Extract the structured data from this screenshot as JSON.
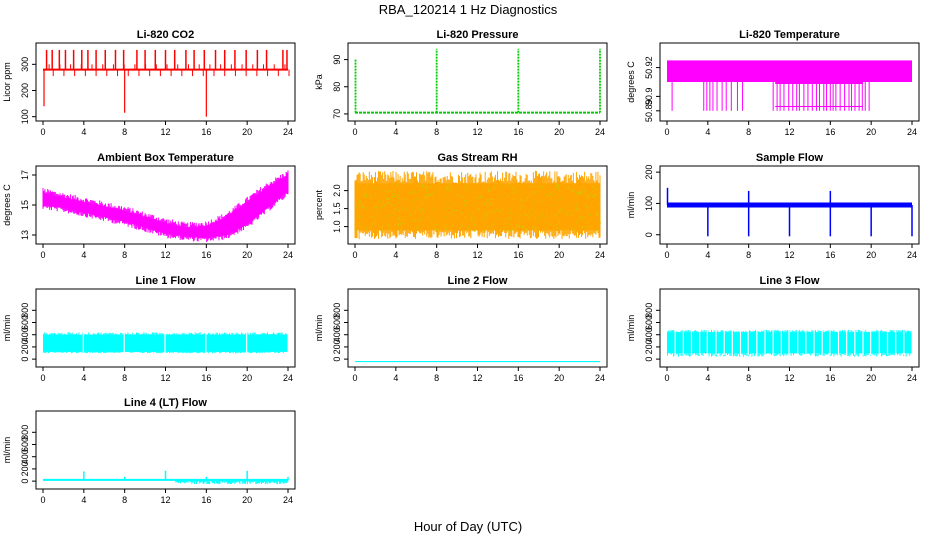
{
  "title": "RBA_120214  1 Hz Diagnostics",
  "xlabel": "Hour of Day (UTC)",
  "colors": {
    "co2": "#ff0000",
    "pressure": "#00cc00",
    "licor_temp": "#ff00ff",
    "box_temp": "#ff00ff",
    "rh_fill": "#ffa500",
    "rh_dots": "#cccc00",
    "sample_flow": "#0000ff",
    "line1": "#00ffff",
    "line2": "#00ffff",
    "line3": "#00ffff",
    "line4": "#00ffff"
  },
  "chart_data": [
    {
      "id": "co2",
      "type": "line",
      "title": "Li-820 CO2",
      "ylabel": "Licor ppm",
      "xlim": [
        0,
        24
      ],
      "ylim": [
        95,
        370
      ],
      "xticks": [
        0,
        4,
        8,
        12,
        16,
        20,
        24
      ],
      "yticks": [
        100,
        200,
        300
      ],
      "baseline": 280,
      "spikes_up": [
        0.35,
        0.9,
        1.6,
        2.2,
        3.0,
        3.8,
        4.4,
        5.2,
        6.1,
        7.1,
        7.9,
        9.2,
        10.0,
        11.0,
        12.0,
        12.9,
        14.0,
        14.8,
        15.8,
        16.9,
        17.8,
        18.8,
        19.9,
        21.0,
        21.9,
        23.5,
        23.9
      ],
      "spikes_down": [
        {
          "x": 0.1,
          "y": 140
        },
        {
          "x": 8.0,
          "y": 115
        },
        {
          "x": 16.0,
          "y": 100
        }
      ]
    },
    {
      "id": "pressure",
      "type": "line",
      "title": "Li-820 Pressure",
      "ylabel": "kPa",
      "xlim": [
        0,
        24
      ],
      "ylim": [
        68.5,
        95
      ],
      "xticks": [
        0,
        4,
        8,
        12,
        16,
        20,
        24
      ],
      "yticks": [
        70,
        80,
        90
      ],
      "baseline": 70.5,
      "spikes": [
        {
          "x": 0.05,
          "y": 90
        },
        {
          "x": 8.0,
          "y": 94
        },
        {
          "x": 16.0,
          "y": 94
        },
        {
          "x": 24.0,
          "y": 94
        }
      ]
    },
    {
      "id": "licor_temp",
      "type": "line",
      "title": "Li-820 Temperature",
      "ylabel": "degrees C",
      "xlim": [
        0,
        24
      ],
      "ylim": [
        50.885,
        50.935
      ],
      "xticks": [
        0,
        4,
        8,
        12,
        16,
        20,
        24
      ],
      "yticks": [
        50.89,
        50.9,
        50.92
      ],
      "ytick_labels": [
        "50.89",
        "50.9",
        "50.92"
      ],
      "levels": [
        50.925,
        50.91,
        50.89
      ]
    },
    {
      "id": "box_temp",
      "type": "area",
      "title": "Ambient Box Temperature",
      "ylabel": "degrees C",
      "xlim": [
        0,
        24
      ],
      "ylim": [
        12.6,
        17.4
      ],
      "xticks": [
        0,
        4,
        8,
        12,
        16,
        20,
        24
      ],
      "yticks": [
        13,
        15,
        17
      ],
      "x": [
        0,
        2,
        4,
        6,
        8,
        10,
        12,
        14,
        16,
        18,
        20,
        22,
        24
      ],
      "y_low": [
        15.0,
        14.8,
        14.5,
        14.2,
        13.9,
        13.5,
        13.1,
        12.9,
        12.8,
        13.0,
        13.7,
        14.8,
        15.9
      ],
      "y_high": [
        15.8,
        15.5,
        15.2,
        14.9,
        14.6,
        14.2,
        13.8,
        13.5,
        13.6,
        14.2,
        15.2,
        16.2,
        17.0
      ]
    },
    {
      "id": "rh",
      "type": "area",
      "title": "Gas Stream RH",
      "ylabel": "percent",
      "xlim": [
        0,
        24
      ],
      "ylim": [
        0.6,
        2.6
      ],
      "xticks": [
        0,
        4,
        8,
        12,
        16,
        20,
        24
      ],
      "yticks": [
        1.0,
        1.5,
        2.0
      ],
      "ytick_labels": [
        "1.0",
        "1.5",
        "2.0"
      ],
      "band": [
        0.9,
        2.2
      ]
    },
    {
      "id": "sample_flow",
      "type": "line",
      "title": "Sample Flow",
      "ylabel": "ml/min",
      "xlim": [
        0,
        24
      ],
      "ylim": [
        -20,
        210
      ],
      "xticks": [
        0,
        4,
        8,
        12,
        16,
        20,
        24
      ],
      "yticks": [
        0,
        100,
        200
      ],
      "baseline": 95,
      "dips": [
        4,
        8,
        12,
        16,
        20,
        24
      ],
      "spikes": [
        {
          "x": 0.05,
          "y": 150
        },
        {
          "x": 8,
          "y": 140
        },
        {
          "x": 16,
          "y": 140
        }
      ]
    },
    {
      "id": "line1",
      "type": "area",
      "title": "Line 1 Flow",
      "ylabel": "ml/min",
      "xlim": [
        0,
        24
      ],
      "ylim": [
        -80,
        1100
      ],
      "xticks": [
        0,
        4,
        8,
        12,
        16,
        20,
        24
      ],
      "yticks": [
        0,
        200,
        400,
        600,
        800
      ],
      "band": [
        120,
        400
      ],
      "gaps": [
        3.95,
        7.95,
        11.95,
        15.95,
        19.95
      ]
    },
    {
      "id": "line2",
      "type": "line",
      "title": "Line 2 Flow",
      "ylabel": "ml/min",
      "xlim": [
        0,
        24
      ],
      "ylim": [
        -80,
        1100
      ],
      "xticks": [
        0,
        4,
        8,
        12,
        16,
        20,
        24
      ],
      "yticks": [
        0,
        200,
        400,
        600,
        800
      ],
      "baseline": -40
    },
    {
      "id": "line3",
      "type": "area",
      "title": "Line 3 Flow",
      "ylabel": "ml/min",
      "xlim": [
        0,
        24
      ],
      "ylim": [
        -80,
        1100
      ],
      "xticks": [
        0,
        4,
        8,
        12,
        16,
        20,
        24
      ],
      "yticks": [
        0,
        200,
        400,
        600,
        800
      ],
      "band": [
        100,
        440
      ],
      "gaps": [
        0.8,
        1.6,
        2.4,
        3.2,
        3.95,
        4.8,
        5.6,
        6.4,
        7.2,
        7.95,
        8.8,
        9.6,
        10.4,
        11.2,
        11.95,
        12.8,
        13.6,
        14.4,
        15.2,
        15.95,
        16.8,
        17.6,
        18.4,
        19.2,
        19.95,
        20.8,
        21.6,
        22.4,
        23.2
      ]
    },
    {
      "id": "line4",
      "type": "line",
      "title": "Line 4 (LT) Flow",
      "ylabel": "ml/min",
      "xlim": [
        0,
        24
      ],
      "ylim": [
        -80,
        1100
      ],
      "xticks": [
        0,
        4,
        8,
        12,
        16,
        20,
        24
      ],
      "yticks": [
        0,
        200,
        400,
        600,
        800
      ],
      "baseline": 20,
      "spikes": [
        {
          "x": 4,
          "y": 160
        },
        {
          "x": 8,
          "y": 70
        },
        {
          "x": 12,
          "y": 170
        },
        {
          "x": 16,
          "y": 70
        },
        {
          "x": 20,
          "y": 170
        },
        {
          "x": 24,
          "y": 70
        }
      ]
    }
  ]
}
